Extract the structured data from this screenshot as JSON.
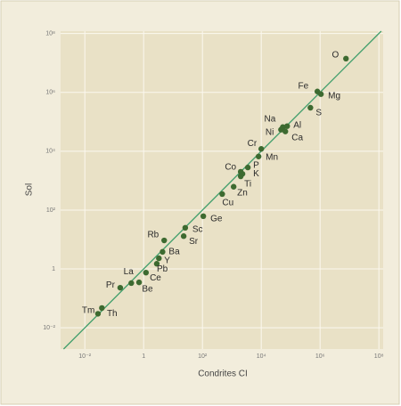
{
  "chart_data": {
    "type": "scatter",
    "x_label": "Condrites CI",
    "y_label": "Sol",
    "labels": [
      "O",
      "Fe",
      "Mg",
      "S",
      "Na",
      "Ni",
      "Al",
      "Ca",
      "Cr",
      "Mn",
      "Co",
      "P",
      "K",
      "Ti",
      "Zn",
      "Cu",
      "Ge",
      "Sc",
      "Sr",
      "Rb",
      "Ba",
      "Y",
      "Pb",
      "La",
      "Ce",
      "Pr",
      "Be",
      "Tm",
      "Th"
    ],
    "x": [
      7600000,
      810000,
      1070000,
      470000,
      54000,
      47000,
      76000,
      66000,
      10000,
      8100,
      2000,
      3500,
      2300,
      2000,
      1150,
      470,
      107,
      26,
      23,
      5,
      4.4,
      3.3,
      2.8,
      1.2,
      0.7,
      0.16,
      0.38,
      0.038,
      0.028
    ],
    "y": [
      14000000,
      1070000,
      870000,
      300000,
      66000,
      54000,
      71000,
      47000,
      12000,
      6600,
      2000,
      2800,
      1700,
      1400,
      620,
      350,
      62,
      25,
      13,
      9.3,
      3.8,
      2.3,
      1.5,
      0.75,
      0.35,
      0.23,
      0.33,
      0.047,
      0.03
    ],
    "color": "#3d6a30",
    "line_color": "#3f9e6b",
    "log_x": true,
    "log_y": true,
    "grid": true,
    "xlim": [
      0.0015,
      140000000
    ],
    "ylim": [
      0.0019,
      120000000
    ],
    "xticks": [
      {
        "value": 0.01,
        "label": "10⁻²"
      },
      1,
      {
        "value": 100,
        "label": "10²"
      },
      {
        "value": 10000,
        "label": "10⁴"
      },
      {
        "value": 1000000,
        "label": "10⁶"
      },
      {
        "value": 100000000,
        "label": "10⁸"
      }
    ],
    "yticks": [
      {
        "value": 0.01,
        "label": "10⁻²"
      },
      1,
      {
        "value": 100,
        "label": "10²"
      },
      {
        "value": 10000,
        "label": "10⁴"
      },
      {
        "value": 1000000,
        "label": "10⁶"
      },
      {
        "value": 100000000,
        "label": "10⁸"
      }
    ]
  }
}
